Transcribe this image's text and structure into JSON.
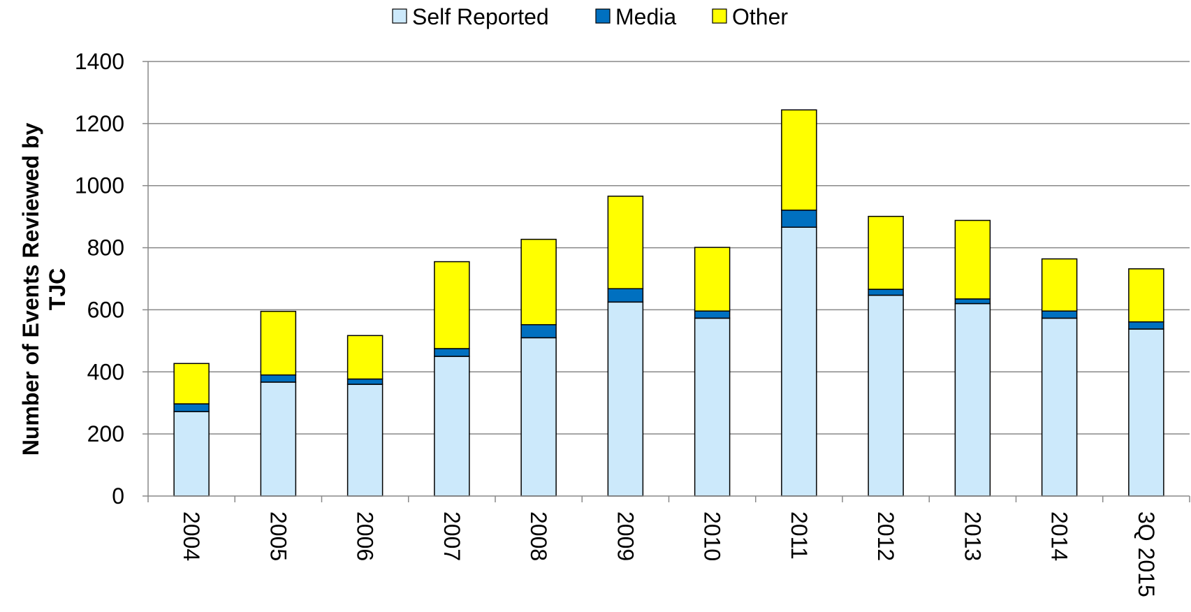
{
  "chart_data": {
    "type": "bar",
    "stacked": true,
    "title": "",
    "xlabel": "",
    "ylabel_lines": [
      "Number of Events Reviewed by",
      "TJC"
    ],
    "ylim": [
      0,
      1400
    ],
    "yticks": [
      "0",
      "200",
      "400",
      "600",
      "800",
      "1000",
      "1200",
      "1400"
    ],
    "grid": true,
    "legend_position": "top",
    "categories": [
      "2004",
      "2005",
      "2006",
      "2007",
      "2008",
      "2009",
      "2010",
      "2011",
      "2012",
      "2013",
      "2014",
      "3Q 2015"
    ],
    "series": [
      {
        "name": "Self Reported",
        "color": "#CCE9FB",
        "values": [
          272,
          367,
          360,
          450,
          510,
          625,
          573,
          866,
          647,
          620,
          573,
          538
        ]
      },
      {
        "name": "Media",
        "color": "#0070C0",
        "values": [
          25,
          23,
          17,
          25,
          42,
          43,
          23,
          55,
          19,
          15,
          23,
          23
        ]
      },
      {
        "name": "Other",
        "color": "#FFFF00",
        "values": [
          130,
          205,
          140,
          280,
          275,
          298,
          205,
          323,
          235,
          253,
          168,
          171
        ]
      }
    ]
  }
}
